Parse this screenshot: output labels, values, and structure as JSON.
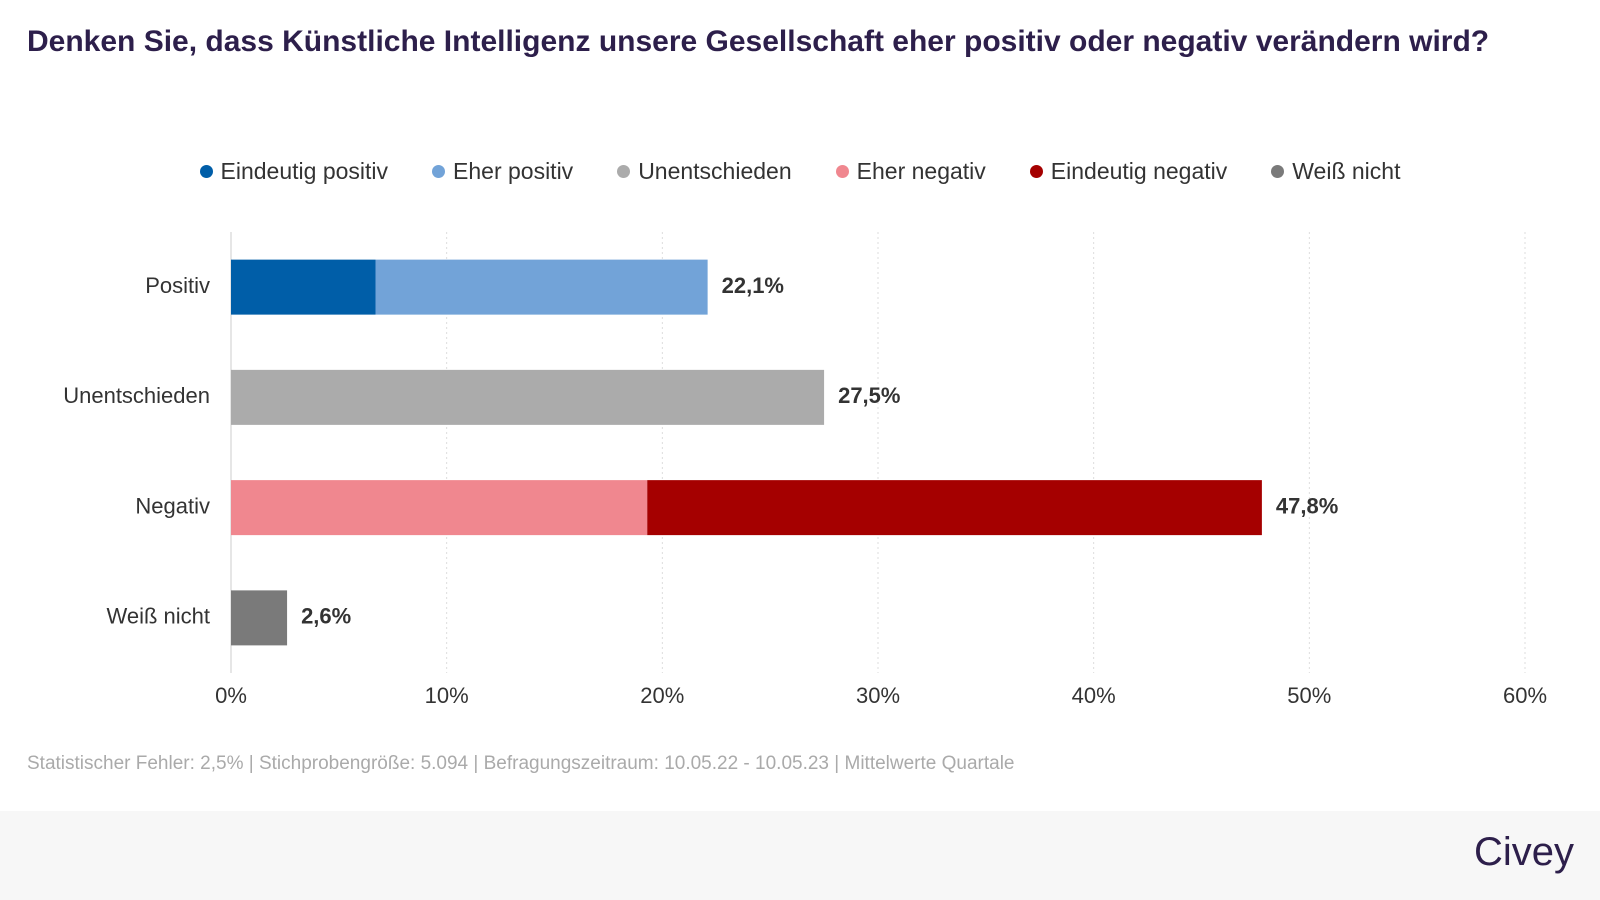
{
  "chart_data": {
    "type": "stacked-bar-horizontal",
    "title": "Denken Sie, dass Künstliche Intelligenz unsere Gesellschaft eher positiv oder negativ verändern wird?",
    "categories": [
      "Positiv",
      "Unentschieden",
      "Negativ",
      "Weiß nicht"
    ],
    "series": [
      {
        "name": "Eindeutig positiv",
        "color": "#005ea8",
        "values": [
          6.7,
          null,
          null,
          null
        ]
      },
      {
        "name": "Eher positiv",
        "color": "#72a3d8",
        "values": [
          15.4,
          null,
          null,
          null
        ]
      },
      {
        "name": "Unentschieden",
        "color": "#ababab",
        "values": [
          null,
          27.5,
          null,
          null
        ]
      },
      {
        "name": "Eher negativ",
        "color": "#f0878f",
        "values": [
          null,
          null,
          19.3,
          null
        ]
      },
      {
        "name": "Eindeutig negativ",
        "color": "#a50000",
        "values": [
          null,
          null,
          28.5,
          null
        ]
      },
      {
        "name": "Weiß nicht",
        "color": "#7a7a7a",
        "values": [
          null,
          null,
          null,
          2.6
        ]
      }
    ],
    "totals": [
      22.1,
      27.5,
      47.8,
      2.6
    ],
    "total_labels": [
      "22,1%",
      "27,5%",
      "47,8%",
      "2,6%"
    ],
    "xlim": [
      0,
      60
    ],
    "xticks": [
      {
        "value": 0,
        "label": "0%"
      },
      {
        "value": 10,
        "label": "10%"
      },
      {
        "value": 20,
        "label": "20%"
      },
      {
        "value": 30,
        "label": "30%"
      },
      {
        "value": 40,
        "label": "40%"
      },
      {
        "value": 50,
        "label": "50%"
      },
      {
        "value": 60,
        "label": "60%"
      }
    ],
    "grid": true,
    "legend": "top",
    "footnote": "Statistischer Fehler: 2,5% | Stichprobengröße: 5.094 | Befragungszeitraum: 10.05.22 - 10.05.23 | Mittelwerte Quartale",
    "brand": "Civey"
  }
}
